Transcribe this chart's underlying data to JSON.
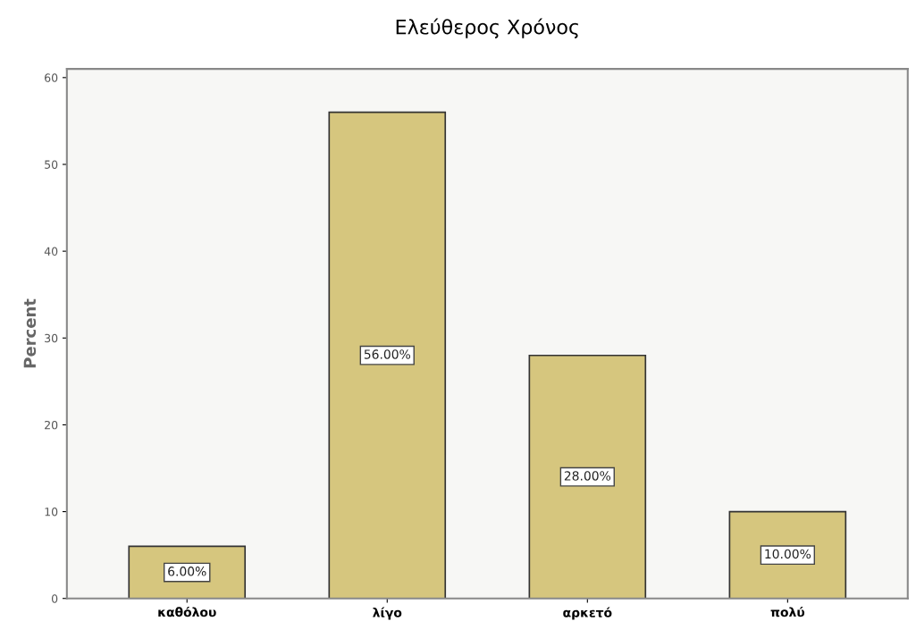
{
  "chart_data": {
    "type": "bar",
    "title": "Ελεύθερος Χρόνος",
    "ylabel": "Percent",
    "categories": [
      "καθόλου",
      "λίγο",
      "αρκετό",
      "πολύ"
    ],
    "values": [
      6,
      56,
      28,
      10
    ],
    "value_labels": [
      "6.00%",
      "56.00%",
      "28.00%",
      "10.00%"
    ],
    "color": "#d6c67e",
    "ylim": [
      0,
      61
    ],
    "yticks": [
      0,
      10,
      20,
      30,
      40,
      50,
      60
    ],
    "grid": false,
    "legend": false
  }
}
